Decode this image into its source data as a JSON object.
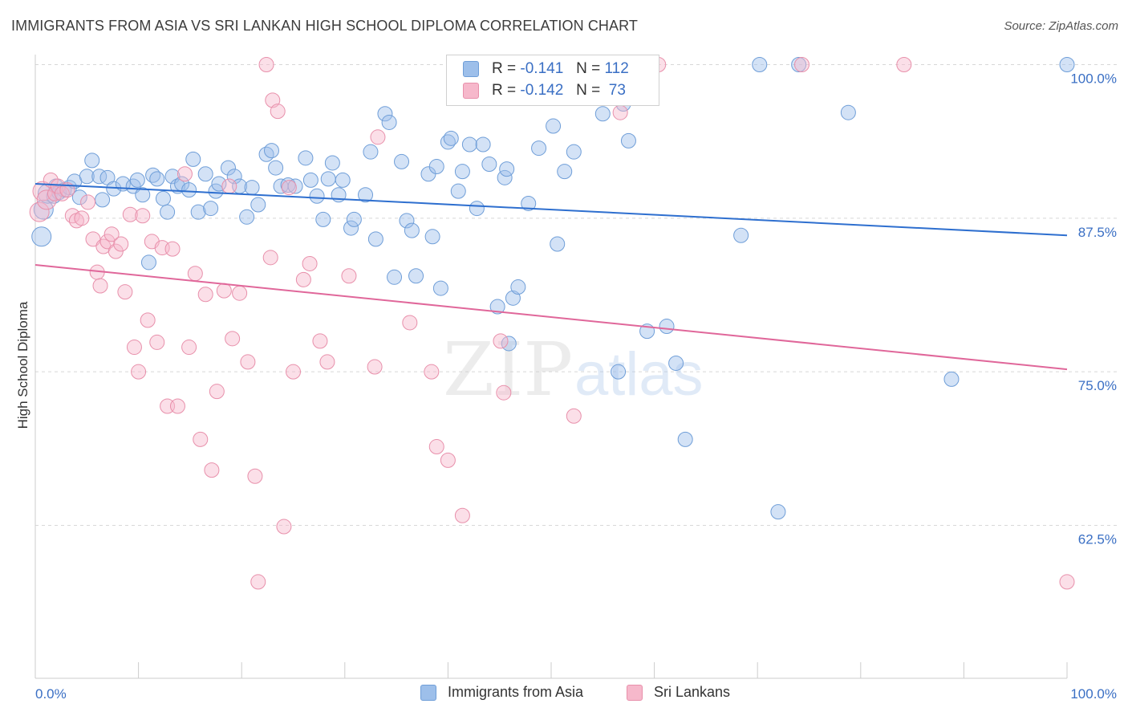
{
  "header": {
    "title": "IMMIGRANTS FROM ASIA VS SRI LANKAN HIGH SCHOOL DIPLOMA CORRELATION CHART",
    "source": "Source: ZipAtlas.com"
  },
  "legend": {
    "rows": [
      {
        "r_label": "R =",
        "r_value": "-0.141",
        "n_label": "N =",
        "n_value": "112",
        "color": "#9dbfea",
        "border": "#6f9ed8"
      },
      {
        "r_label": "R =",
        "r_value": "-0.142",
        "n_label": "N =",
        "n_value": "73",
        "color": "#f6b8cb",
        "border": "#e890ab"
      }
    ]
  },
  "bottom_legend": [
    {
      "label": "Immigrants from Asia",
      "color": "#9dbfea",
      "border": "#6f9ed8"
    },
    {
      "label": "Sri Lankans",
      "color": "#f6b8cb",
      "border": "#e890ab"
    }
  ],
  "watermark": {
    "zip": "ZIP",
    "atlas": "atlas"
  },
  "chart_data": {
    "type": "scatter",
    "title": "IMMIGRANTS FROM ASIA VS SRI LANKAN HIGH SCHOOL DIPLOMA CORRELATION CHART",
    "xlabel": "",
    "ylabel": "High School Diploma",
    "xlim": [
      0,
      100
    ],
    "ylim": [
      52,
      101.5
    ],
    "x_tick_labels": [
      "0.0%",
      "100.0%"
    ],
    "y_ticks": [
      62.5,
      75.0,
      87.5,
      100.0
    ],
    "y_tick_labels": [
      "62.5%",
      "75.0%",
      "87.5%",
      "100.0%"
    ],
    "grid": "horizontal dashed",
    "series": [
      {
        "name": "Immigrants from Asia",
        "color": "#6f9ed8",
        "fill": "#9dbfea",
        "trend": {
          "x": [
            0,
            100
          ],
          "y": [
            90.3,
            86.1
          ]
        },
        "points": [
          [
            0.6,
            86.0
          ],
          [
            0.8,
            88.2
          ],
          [
            1.2,
            89.5
          ],
          [
            1.8,
            89.3
          ],
          [
            2.0,
            90.1
          ],
          [
            2.3,
            89.6
          ],
          [
            2.8,
            89.8
          ],
          [
            3.3,
            90.0
          ],
          [
            3.8,
            90.5
          ],
          [
            4.3,
            89.2
          ],
          [
            5.0,
            90.9
          ],
          [
            5.5,
            92.2
          ],
          [
            6.2,
            90.9
          ],
          [
            6.5,
            89.0
          ],
          [
            7.0,
            90.8
          ],
          [
            7.6,
            89.9
          ],
          [
            8.5,
            90.3
          ],
          [
            9.5,
            90.1
          ],
          [
            9.9,
            90.6
          ],
          [
            10.4,
            89.4
          ],
          [
            11.0,
            83.9
          ],
          [
            11.4,
            91.0
          ],
          [
            11.8,
            90.7
          ],
          [
            12.4,
            89.1
          ],
          [
            12.8,
            88.0
          ],
          [
            13.3,
            90.9
          ],
          [
            13.8,
            90.1
          ],
          [
            14.2,
            90.3
          ],
          [
            14.9,
            89.8
          ],
          [
            15.3,
            92.3
          ],
          [
            15.8,
            88.0
          ],
          [
            16.5,
            91.1
          ],
          [
            17.0,
            88.3
          ],
          [
            17.5,
            89.7
          ],
          [
            17.8,
            90.3
          ],
          [
            18.7,
            91.6
          ],
          [
            19.3,
            90.9
          ],
          [
            19.8,
            90.1
          ],
          [
            20.5,
            87.6
          ],
          [
            21.0,
            90.0
          ],
          [
            21.6,
            88.6
          ],
          [
            22.4,
            92.7
          ],
          [
            22.9,
            93.0
          ],
          [
            23.3,
            91.6
          ],
          [
            23.8,
            90.1
          ],
          [
            24.5,
            90.2
          ],
          [
            25.2,
            90.1
          ],
          [
            26.2,
            92.4
          ],
          [
            26.7,
            90.6
          ],
          [
            27.3,
            89.3
          ],
          [
            27.9,
            87.4
          ],
          [
            28.4,
            90.7
          ],
          [
            28.8,
            92.0
          ],
          [
            29.4,
            89.4
          ],
          [
            29.8,
            90.6
          ],
          [
            30.6,
            86.7
          ],
          [
            30.9,
            87.4
          ],
          [
            32.0,
            89.4
          ],
          [
            32.5,
            92.9
          ],
          [
            33.0,
            85.8
          ],
          [
            33.9,
            96.0
          ],
          [
            34.3,
            95.3
          ],
          [
            34.8,
            82.7
          ],
          [
            35.5,
            92.1
          ],
          [
            36.0,
            87.3
          ],
          [
            36.5,
            86.5
          ],
          [
            36.9,
            82.8
          ],
          [
            38.1,
            91.1
          ],
          [
            38.5,
            86.0
          ],
          [
            38.9,
            91.7
          ],
          [
            39.3,
            81.8
          ],
          [
            40.0,
            93.7
          ],
          [
            40.3,
            94.0
          ],
          [
            41.0,
            89.7
          ],
          [
            41.4,
            91.3
          ],
          [
            42.1,
            93.5
          ],
          [
            42.8,
            88.3
          ],
          [
            43.4,
            93.5
          ],
          [
            44.0,
            91.9
          ],
          [
            44.8,
            80.3
          ],
          [
            45.5,
            90.8
          ],
          [
            45.7,
            91.5
          ],
          [
            45.9,
            77.3
          ],
          [
            46.3,
            81.0
          ],
          [
            46.8,
            81.9
          ],
          [
            47.8,
            88.7
          ],
          [
            48.8,
            93.2
          ],
          [
            50.2,
            95.0
          ],
          [
            50.6,
            85.4
          ],
          [
            51.3,
            91.3
          ],
          [
            52.2,
            92.9
          ],
          [
            55.0,
            96.0
          ],
          [
            56.5,
            75.0
          ],
          [
            57.0,
            96.8
          ],
          [
            57.5,
            93.8
          ],
          [
            58.2,
            98.8
          ],
          [
            59.3,
            78.3
          ],
          [
            61.2,
            78.7
          ],
          [
            62.1,
            75.7
          ],
          [
            63.0,
            69.5
          ],
          [
            68.4,
            86.1
          ],
          [
            70.2,
            100.0
          ],
          [
            72.0,
            63.6
          ],
          [
            74.0,
            100.0
          ],
          [
            78.8,
            96.1
          ],
          [
            88.8,
            74.4
          ],
          [
            100.0,
            100.0
          ]
        ]
      },
      {
        "name": "Sri Lankans",
        "color": "#e890ab",
        "fill": "#f6b8cb",
        "trend": {
          "x": [
            0,
            100
          ],
          "y": [
            83.7,
            75.2
          ]
        },
        "points": [
          [
            0.4,
            88.0
          ],
          [
            0.7,
            89.7
          ],
          [
            1.1,
            89.0
          ],
          [
            1.5,
            90.6
          ],
          [
            1.9,
            89.5
          ],
          [
            2.2,
            90.1
          ],
          [
            2.6,
            89.5
          ],
          [
            3.1,
            89.8
          ],
          [
            3.6,
            87.7
          ],
          [
            4.0,
            87.3
          ],
          [
            4.5,
            87.5
          ],
          [
            5.1,
            88.8
          ],
          [
            5.6,
            85.8
          ],
          [
            6.0,
            83.1
          ],
          [
            6.3,
            82.0
          ],
          [
            6.6,
            85.2
          ],
          [
            7.0,
            85.6
          ],
          [
            7.4,
            86.2
          ],
          [
            7.8,
            84.8
          ],
          [
            8.3,
            85.4
          ],
          [
            8.7,
            81.5
          ],
          [
            9.2,
            87.8
          ],
          [
            9.6,
            77.0
          ],
          [
            10.0,
            75.0
          ],
          [
            10.4,
            87.7
          ],
          [
            10.9,
            79.2
          ],
          [
            11.3,
            85.6
          ],
          [
            11.8,
            77.4
          ],
          [
            12.3,
            85.1
          ],
          [
            12.8,
            72.2
          ],
          [
            13.3,
            85.0
          ],
          [
            13.8,
            72.2
          ],
          [
            14.5,
            91.1
          ],
          [
            14.9,
            77.0
          ],
          [
            15.5,
            83.0
          ],
          [
            16.0,
            69.5
          ],
          [
            16.5,
            81.3
          ],
          [
            17.1,
            67.0
          ],
          [
            17.6,
            73.4
          ],
          [
            18.3,
            81.6
          ],
          [
            18.8,
            90.1
          ],
          [
            19.1,
            77.7
          ],
          [
            19.8,
            81.4
          ],
          [
            20.6,
            75.8
          ],
          [
            21.3,
            66.5
          ],
          [
            21.6,
            57.9
          ],
          [
            22.4,
            100.0
          ],
          [
            22.8,
            84.3
          ],
          [
            23.0,
            97.1
          ],
          [
            23.5,
            96.2
          ],
          [
            24.1,
            62.4
          ],
          [
            24.6,
            90.0
          ],
          [
            25.0,
            75.0
          ],
          [
            26.0,
            82.5
          ],
          [
            26.6,
            83.8
          ],
          [
            27.6,
            77.5
          ],
          [
            28.3,
            75.8
          ],
          [
            30.4,
            82.8
          ],
          [
            32.9,
            75.4
          ],
          [
            33.2,
            94.1
          ],
          [
            36.3,
            79.0
          ],
          [
            38.4,
            75.0
          ],
          [
            38.9,
            68.9
          ],
          [
            40.0,
            67.8
          ],
          [
            41.4,
            63.3
          ],
          [
            45.1,
            77.5
          ],
          [
            45.4,
            73.3
          ],
          [
            52.2,
            71.4
          ],
          [
            56.7,
            96.1
          ],
          [
            60.4,
            100.0
          ],
          [
            74.3,
            100.0
          ],
          [
            84.2,
            100.0
          ],
          [
            100.0,
            57.9
          ]
        ]
      }
    ]
  }
}
